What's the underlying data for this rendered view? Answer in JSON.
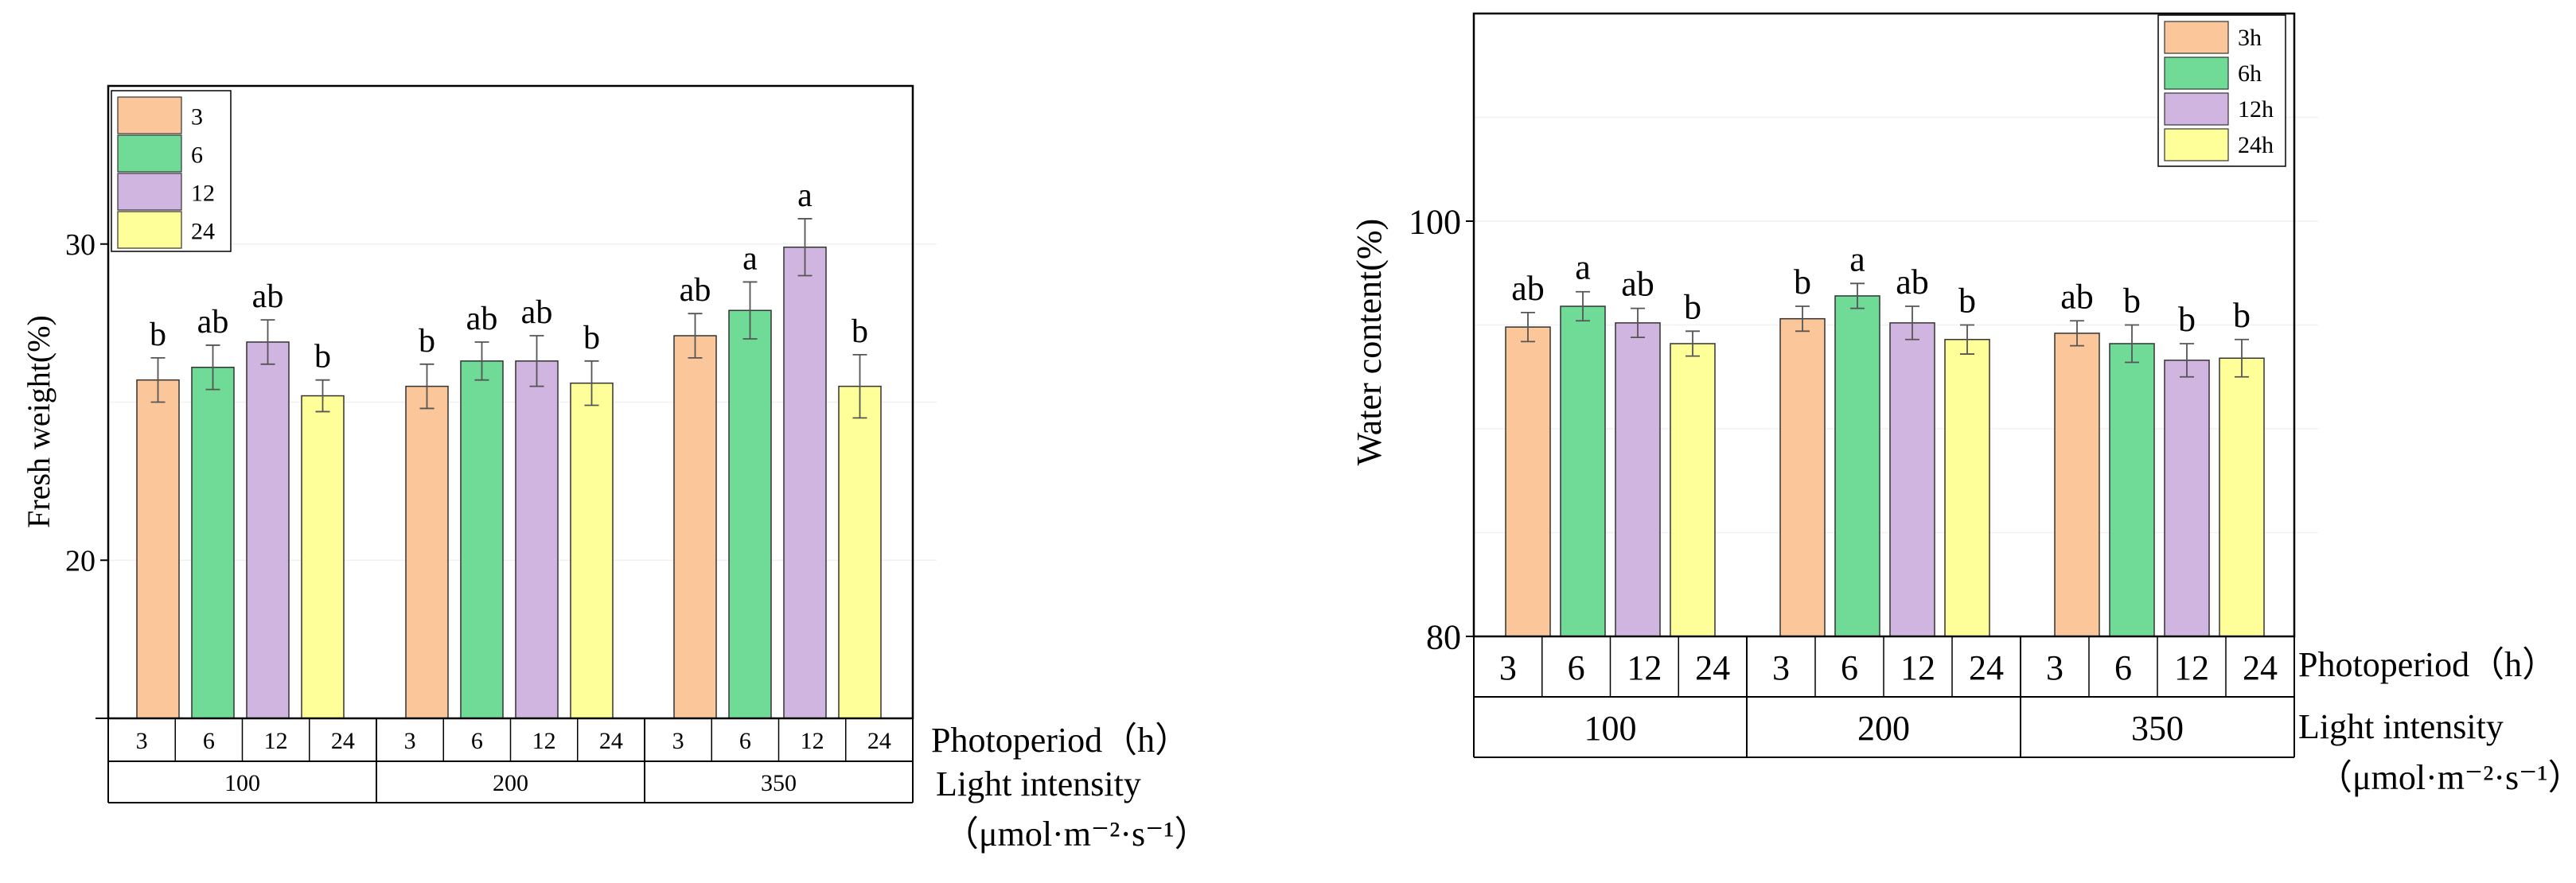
{
  "colors": {
    "3": "#FBC79A",
    "6": "#6FDB96",
    "12": "#D0B5E0",
    "24": "#FFFF99",
    "axis": "#000000",
    "errorbar": "#555555"
  },
  "chart_data": [
    {
      "type": "bar",
      "ylabel": "Fresh weight(%)",
      "ylim": [
        15,
        35
      ],
      "yticks": [
        "20",
        "30"
      ],
      "photoperiod_label": "Photoperiod（h）",
      "light_label_line1": "Light intensity",
      "light_label_line2": "（μmol·m⁻²·s⁻¹）",
      "groups": [
        "100",
        "200",
        "350"
      ],
      "photoperiods": [
        "3",
        "6",
        "12",
        "24"
      ],
      "legend": [
        "3",
        "6",
        "12",
        "24"
      ],
      "series": [
        {
          "name": "3",
          "values": [
            25.7,
            25.5,
            27.1
          ],
          "errors": [
            0.7,
            0.7,
            0.7
          ],
          "letters": [
            "b",
            "b",
            "ab"
          ]
        },
        {
          "name": "6",
          "values": [
            26.1,
            26.3,
            27.9
          ],
          "errors": [
            0.7,
            0.6,
            0.9
          ],
          "letters": [
            "ab",
            "ab",
            "a"
          ]
        },
        {
          "name": "12",
          "values": [
            26.9,
            26.3,
            29.9
          ],
          "errors": [
            0.7,
            0.8,
            0.9
          ],
          "letters": [
            "ab",
            "ab",
            "a"
          ]
        },
        {
          "name": "24",
          "values": [
            25.2,
            25.6,
            25.5
          ],
          "errors": [
            0.5,
            0.7,
            1.0
          ],
          "letters": [
            "b",
            "b",
            "b"
          ]
        }
      ]
    },
    {
      "type": "bar",
      "ylabel": "Water content(%)",
      "ylim": [
        80,
        110
      ],
      "yticks": [
        "80",
        "100"
      ],
      "photoperiod_label": "Photoperiod（h）",
      "light_label_line1": "Light intensity",
      "light_label_line2": "（μmol·m⁻²·s⁻¹）",
      "groups": [
        "100",
        "200",
        "350"
      ],
      "photoperiods": [
        "3",
        "6",
        "12",
        "24"
      ],
      "legend": [
        "3h",
        "6h",
        "12h",
        "24h"
      ],
      "series": [
        {
          "name": "3h",
          "values": [
            94.9,
            95.3,
            94.6
          ],
          "errors": [
            0.7,
            0.6,
            0.6
          ],
          "letters": [
            "ab",
            "b",
            "ab"
          ]
        },
        {
          "name": "6h",
          "values": [
            95.9,
            96.4,
            94.1
          ],
          "errors": [
            0.7,
            0.6,
            0.9
          ],
          "letters": [
            "a",
            "a",
            "b"
          ]
        },
        {
          "name": "12h",
          "values": [
            95.1,
            95.1,
            93.3
          ],
          "errors": [
            0.7,
            0.8,
            0.8
          ],
          "letters": [
            "ab",
            "ab",
            "b"
          ]
        },
        {
          "name": "24h",
          "values": [
            94.1,
            94.3,
            93.4
          ],
          "errors": [
            0.6,
            0.7,
            0.9
          ],
          "letters": [
            "b",
            "b",
            "b"
          ]
        }
      ]
    }
  ]
}
